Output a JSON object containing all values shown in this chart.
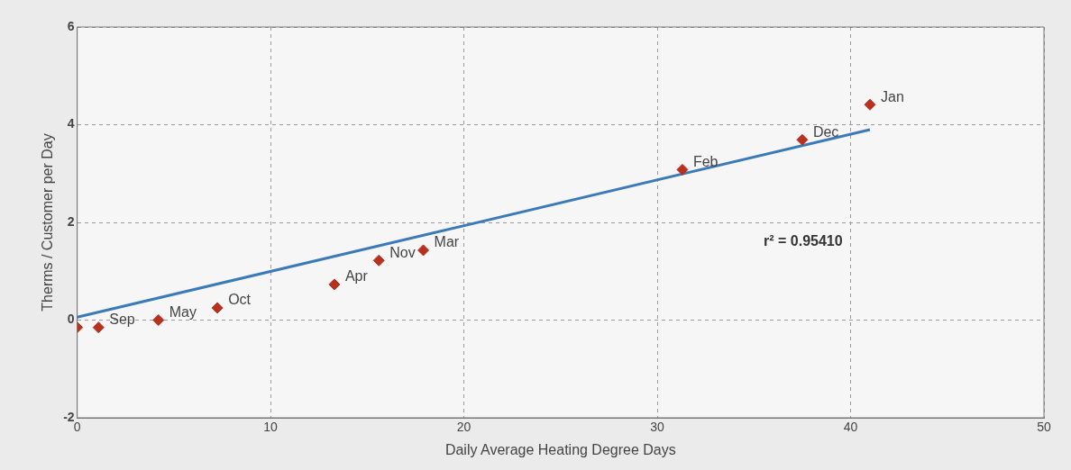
{
  "chart_data": {
    "type": "scatter",
    "xlabel": "Daily Average Heating Degree Days",
    "ylabel": "Therms / Customer per Day",
    "xlim": [
      0,
      50
    ],
    "xticks": [
      0,
      10,
      20,
      30,
      40,
      50
    ],
    "ylim": [
      -2,
      6
    ],
    "yticks": [
      -2,
      0,
      2,
      4,
      6
    ],
    "grid": true,
    "legend": false,
    "series": [
      {
        "color": "#b8301e",
        "marker": "diamond",
        "x": [
          0,
          1.1,
          4.2,
          7.25,
          13.3,
          15.6,
          17.9,
          31.3,
          37.5,
          41.0
        ],
        "values": [
          -0.15,
          -0.15,
          0.0,
          0.25,
          0.73,
          1.22,
          1.43,
          3.08,
          3.69,
          4.41
        ]
      },
      {
        "type": "line",
        "color": "#3a7ab8",
        "marker": "none",
        "x": [
          0,
          41
        ],
        "values": [
          0.06,
          3.9
        ]
      }
    ],
    "annotations": [
      {
        "text": "Sep",
        "x": 1.1,
        "y": -0.15
      },
      {
        "text": "May",
        "x": 4.2,
        "y": 0.0
      },
      {
        "text": "Oct",
        "x": 7.25,
        "y": 0.25
      },
      {
        "text": "Apr",
        "x": 13.3,
        "y": 0.73
      },
      {
        "text": "Nov",
        "x": 15.6,
        "y": 1.22
      },
      {
        "text": "Mar",
        "x": 17.9,
        "y": 1.43
      },
      {
        "text": "Feb",
        "x": 31.3,
        "y": 3.08
      },
      {
        "text": "Dec",
        "x": 37.5,
        "y": 3.69
      },
      {
        "text": "Jan",
        "x": 41.0,
        "y": 4.41
      },
      "r² = 0.95410"
    ]
  }
}
